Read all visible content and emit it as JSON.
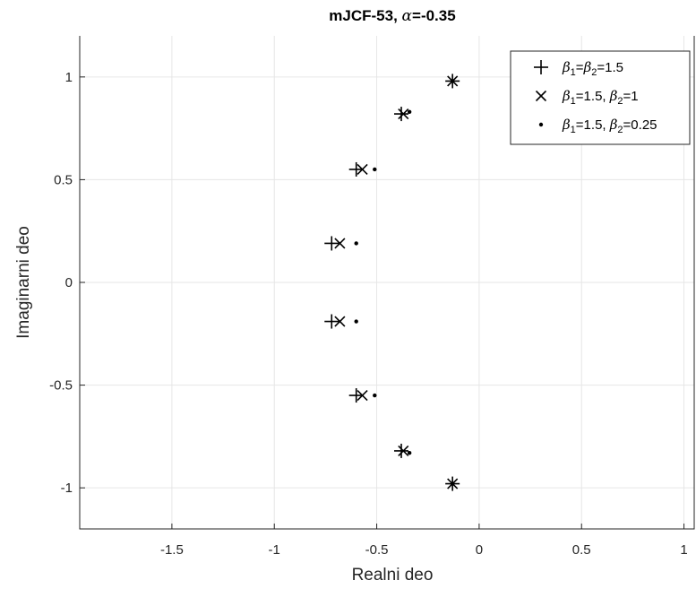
{
  "chart_data": {
    "type": "scatter",
    "title_main": "mJCF-53, ",
    "title_alpha": "α",
    "title_suffix": "=-0.35",
    "xlabel": "Realni deo",
    "ylabel": "Imaginarni deo",
    "xlim": [
      -1.95,
      1.05
    ],
    "ylim": [
      -1.2,
      1.2
    ],
    "xticks": [
      -1.5,
      -1,
      -0.5,
      0,
      0.5,
      1
    ],
    "xtick_labels": [
      "-1.5",
      "-1",
      "-0.5",
      "0",
      "0.5",
      "1"
    ],
    "yticks": [
      -1,
      -0.5,
      0,
      0.5,
      1
    ],
    "ytick_labels": [
      "-1",
      "-0.5",
      "0",
      "0.5",
      "1"
    ],
    "grid": true,
    "legend_position": "top-right",
    "series": [
      {
        "marker": "plus",
        "legend": {
          "b1": "β",
          "s1": "1",
          "mid": "=",
          "b2": "β",
          "s2": "2",
          "rest": "=1.5"
        },
        "points": [
          [
            -0.13,
            0.98
          ],
          [
            -0.38,
            0.82
          ],
          [
            -0.6,
            0.55
          ],
          [
            -0.72,
            0.19
          ],
          [
            -0.72,
            -0.19
          ],
          [
            -0.6,
            -0.55
          ],
          [
            -0.38,
            -0.82
          ],
          [
            -0.13,
            -0.98
          ]
        ]
      },
      {
        "marker": "x",
        "legend": {
          "b1": "β",
          "s1": "1",
          "mid": "=1.5, ",
          "b2": "β",
          "s2": "2",
          "rest": "=1"
        },
        "points": [
          [
            -0.13,
            0.98
          ],
          [
            -0.37,
            0.82
          ],
          [
            -0.57,
            0.55
          ],
          [
            -0.68,
            0.19
          ],
          [
            -0.68,
            -0.19
          ],
          [
            -0.57,
            -0.55
          ],
          [
            -0.37,
            -0.82
          ],
          [
            -0.13,
            -0.98
          ]
        ]
      },
      {
        "marker": "dot",
        "legend": {
          "b1": "β",
          "s1": "1",
          "mid": "=1.5, ",
          "b2": "β",
          "s2": "2",
          "rest": "=0.25"
        },
        "points": [
          [
            -0.13,
            0.98
          ],
          [
            -0.34,
            0.83
          ],
          [
            -0.51,
            0.55
          ],
          [
            -0.6,
            0.19
          ],
          [
            -0.6,
            -0.19
          ],
          [
            -0.51,
            -0.55
          ],
          [
            -0.34,
            -0.83
          ],
          [
            -0.13,
            -0.98
          ]
        ]
      }
    ]
  }
}
